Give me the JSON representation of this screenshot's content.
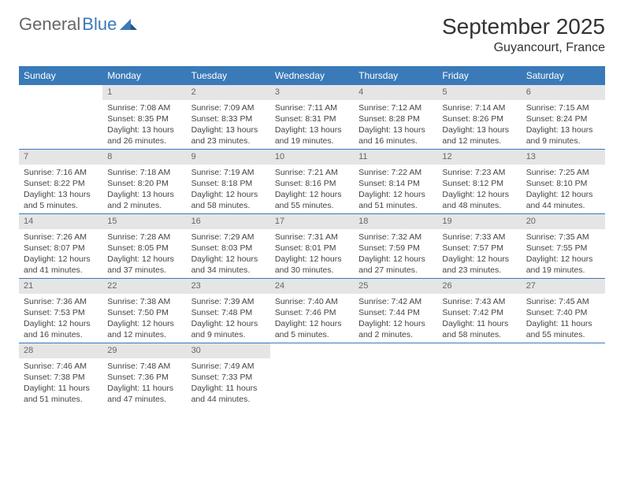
{
  "brand": {
    "general": "General",
    "blue": "Blue"
  },
  "header": {
    "month_title": "September 2025",
    "location": "Guyancourt, France"
  },
  "style": {
    "accent": "#3a7ab8",
    "header_bg": "#3a7ab8",
    "daynum_bg": "#e5e5e5",
    "text": "#333333",
    "page_bg": "#ffffff"
  },
  "weekdays": [
    "Sunday",
    "Monday",
    "Tuesday",
    "Wednesday",
    "Thursday",
    "Friday",
    "Saturday"
  ],
  "blank_leading": 1,
  "days": [
    {
      "n": 1,
      "sr": "7:08 AM",
      "ss": "8:35 PM",
      "dl": "13 hours and 26 minutes."
    },
    {
      "n": 2,
      "sr": "7:09 AM",
      "ss": "8:33 PM",
      "dl": "13 hours and 23 minutes."
    },
    {
      "n": 3,
      "sr": "7:11 AM",
      "ss": "8:31 PM",
      "dl": "13 hours and 19 minutes."
    },
    {
      "n": 4,
      "sr": "7:12 AM",
      "ss": "8:28 PM",
      "dl": "13 hours and 16 minutes."
    },
    {
      "n": 5,
      "sr": "7:14 AM",
      "ss": "8:26 PM",
      "dl": "13 hours and 12 minutes."
    },
    {
      "n": 6,
      "sr": "7:15 AM",
      "ss": "8:24 PM",
      "dl": "13 hours and 9 minutes."
    },
    {
      "n": 7,
      "sr": "7:16 AM",
      "ss": "8:22 PM",
      "dl": "13 hours and 5 minutes."
    },
    {
      "n": 8,
      "sr": "7:18 AM",
      "ss": "8:20 PM",
      "dl": "13 hours and 2 minutes."
    },
    {
      "n": 9,
      "sr": "7:19 AM",
      "ss": "8:18 PM",
      "dl": "12 hours and 58 minutes."
    },
    {
      "n": 10,
      "sr": "7:21 AM",
      "ss": "8:16 PM",
      "dl": "12 hours and 55 minutes."
    },
    {
      "n": 11,
      "sr": "7:22 AM",
      "ss": "8:14 PM",
      "dl": "12 hours and 51 minutes."
    },
    {
      "n": 12,
      "sr": "7:23 AM",
      "ss": "8:12 PM",
      "dl": "12 hours and 48 minutes."
    },
    {
      "n": 13,
      "sr": "7:25 AM",
      "ss": "8:10 PM",
      "dl": "12 hours and 44 minutes."
    },
    {
      "n": 14,
      "sr": "7:26 AM",
      "ss": "8:07 PM",
      "dl": "12 hours and 41 minutes."
    },
    {
      "n": 15,
      "sr": "7:28 AM",
      "ss": "8:05 PM",
      "dl": "12 hours and 37 minutes."
    },
    {
      "n": 16,
      "sr": "7:29 AM",
      "ss": "8:03 PM",
      "dl": "12 hours and 34 minutes."
    },
    {
      "n": 17,
      "sr": "7:31 AM",
      "ss": "8:01 PM",
      "dl": "12 hours and 30 minutes."
    },
    {
      "n": 18,
      "sr": "7:32 AM",
      "ss": "7:59 PM",
      "dl": "12 hours and 27 minutes."
    },
    {
      "n": 19,
      "sr": "7:33 AM",
      "ss": "7:57 PM",
      "dl": "12 hours and 23 minutes."
    },
    {
      "n": 20,
      "sr": "7:35 AM",
      "ss": "7:55 PM",
      "dl": "12 hours and 19 minutes."
    },
    {
      "n": 21,
      "sr": "7:36 AM",
      "ss": "7:53 PM",
      "dl": "12 hours and 16 minutes."
    },
    {
      "n": 22,
      "sr": "7:38 AM",
      "ss": "7:50 PM",
      "dl": "12 hours and 12 minutes."
    },
    {
      "n": 23,
      "sr": "7:39 AM",
      "ss": "7:48 PM",
      "dl": "12 hours and 9 minutes."
    },
    {
      "n": 24,
      "sr": "7:40 AM",
      "ss": "7:46 PM",
      "dl": "12 hours and 5 minutes."
    },
    {
      "n": 25,
      "sr": "7:42 AM",
      "ss": "7:44 PM",
      "dl": "12 hours and 2 minutes."
    },
    {
      "n": 26,
      "sr": "7:43 AM",
      "ss": "7:42 PM",
      "dl": "11 hours and 58 minutes."
    },
    {
      "n": 27,
      "sr": "7:45 AM",
      "ss": "7:40 PM",
      "dl": "11 hours and 55 minutes."
    },
    {
      "n": 28,
      "sr": "7:46 AM",
      "ss": "7:38 PM",
      "dl": "11 hours and 51 minutes."
    },
    {
      "n": 29,
      "sr": "7:48 AM",
      "ss": "7:36 PM",
      "dl": "11 hours and 47 minutes."
    },
    {
      "n": 30,
      "sr": "7:49 AM",
      "ss": "7:33 PM",
      "dl": "11 hours and 44 minutes."
    }
  ],
  "labels": {
    "sunrise": "Sunrise:",
    "sunset": "Sunset:",
    "daylight": "Daylight:"
  }
}
